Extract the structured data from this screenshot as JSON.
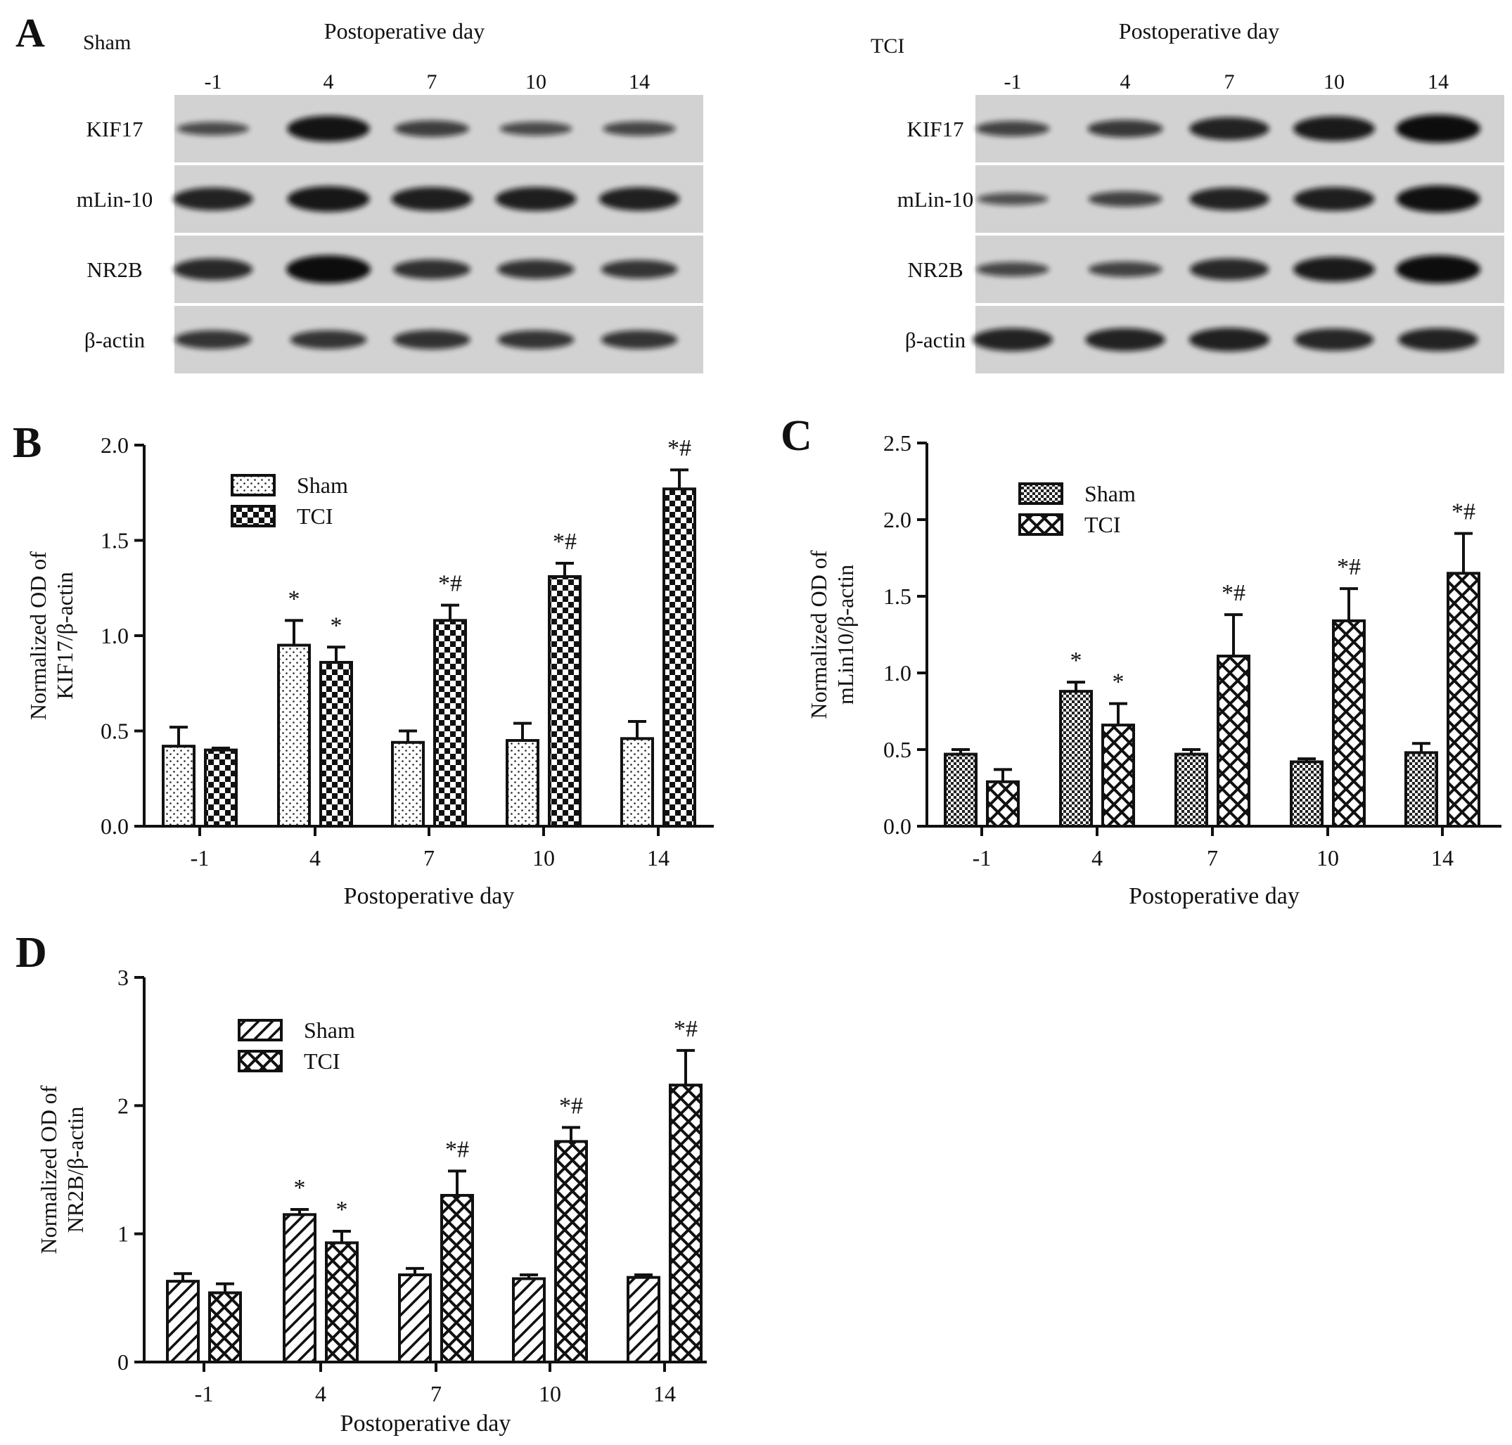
{
  "panel_a": {
    "letter": "A",
    "lanes": [
      "-1",
      "4",
      "7",
      "10",
      "14"
    ],
    "xlabel": "Postoperative day",
    "rows": [
      "KIF17",
      "mLin-10",
      "NR2B",
      "β-actin"
    ],
    "blots": [
      {
        "group": "Sham",
        "intensity": [
          [
            0.3,
            0.9,
            0.45,
            0.32,
            0.35
          ],
          [
            0.75,
            0.88,
            0.8,
            0.8,
            0.78
          ],
          [
            0.7,
            1.0,
            0.6,
            0.58,
            0.55
          ],
          [
            0.55,
            0.55,
            0.58,
            0.55,
            0.55
          ]
        ]
      },
      {
        "group": "TCI",
        "intensity": [
          [
            0.4,
            0.5,
            0.75,
            0.85,
            1.0
          ],
          [
            0.25,
            0.4,
            0.75,
            0.8,
            0.95
          ],
          [
            0.35,
            0.4,
            0.7,
            0.85,
            1.0
          ],
          [
            0.75,
            0.75,
            0.78,
            0.72,
            0.75
          ]
        ]
      }
    ]
  },
  "colors": {
    "ink": "#111111",
    "band": "#0e0e0e",
    "membrane": "#d2d2d2"
  },
  "chart_data": [
    {
      "panel": "B",
      "type": "bar",
      "categories": [
        "-1",
        "4",
        "7",
        "10",
        "14"
      ],
      "xlabel": "Postoperative day",
      "ylabel": [
        "Normalized OD of",
        "KIF17/β-actin"
      ],
      "ylim": [
        0,
        2.0
      ],
      "yticks": [
        "0.0",
        "0.5",
        "1.0",
        "1.5",
        "2.0"
      ],
      "legend_position": "top-left",
      "series": [
        {
          "name": "Sham",
          "pattern": "dots",
          "values": [
            0.42,
            0.95,
            0.44,
            0.45,
            0.46
          ],
          "errors": [
            0.1,
            0.13,
            0.06,
            0.09,
            0.09
          ]
        },
        {
          "name": "TCI",
          "pattern": "checker",
          "values": [
            0.4,
            0.86,
            1.08,
            1.31,
            1.77
          ],
          "errors": [
            0.01,
            0.08,
            0.08,
            0.07,
            0.1
          ]
        }
      ],
      "annotations": [
        {
          "category": 1,
          "series": 0,
          "text": "*"
        },
        {
          "category": 1,
          "series": 1,
          "text": "*"
        },
        {
          "category": 2,
          "series": 1,
          "text": "*#"
        },
        {
          "category": 3,
          "series": 1,
          "text": "*#"
        },
        {
          "category": 4,
          "series": 1,
          "text": "*#"
        }
      ]
    },
    {
      "panel": "C",
      "type": "bar",
      "categories": [
        "-1",
        "4",
        "7",
        "10",
        "14"
      ],
      "xlabel": "Postoperative day",
      "ylabel": [
        "Normalized OD of",
        "mLin10/β-actin"
      ],
      "ylim": [
        0,
        2.5
      ],
      "yticks": [
        "0.0",
        "0.5",
        "1.0",
        "1.5",
        "2.0",
        "2.5"
      ],
      "legend_position": "top-left",
      "series": [
        {
          "name": "Sham",
          "pattern": "fine-checker",
          "values": [
            0.47,
            0.88,
            0.47,
            0.42,
            0.48
          ],
          "errors": [
            0.03,
            0.06,
            0.03,
            0.02,
            0.06
          ]
        },
        {
          "name": "TCI",
          "pattern": "crosshatch",
          "values": [
            0.29,
            0.66,
            1.11,
            1.34,
            1.65
          ],
          "errors": [
            0.08,
            0.14,
            0.27,
            0.21,
            0.26
          ]
        }
      ],
      "annotations": [
        {
          "category": 1,
          "series": 0,
          "text": "*"
        },
        {
          "category": 1,
          "series": 1,
          "text": "*"
        },
        {
          "category": 2,
          "series": 1,
          "text": "*#"
        },
        {
          "category": 3,
          "series": 1,
          "text": "*#"
        },
        {
          "category": 4,
          "series": 1,
          "text": "*#"
        }
      ]
    },
    {
      "panel": "D",
      "type": "bar",
      "categories": [
        "-1",
        "4",
        "7",
        "10",
        "14"
      ],
      "xlabel": "Postoperative day",
      "ylabel": [
        "Normalized OD of",
        "NR2B/β-actin"
      ],
      "ylim": [
        0,
        3
      ],
      "yticks": [
        "0",
        "1",
        "2",
        "3"
      ],
      "legend_position": "top-left",
      "series": [
        {
          "name": "Sham",
          "pattern": "diagonal",
          "values": [
            0.63,
            1.15,
            0.68,
            0.65,
            0.66
          ],
          "errors": [
            0.06,
            0.04,
            0.05,
            0.03,
            0.02
          ]
        },
        {
          "name": "TCI",
          "pattern": "crosshatch",
          "values": [
            0.54,
            0.93,
            1.3,
            1.72,
            2.16
          ],
          "errors": [
            0.07,
            0.09,
            0.19,
            0.11,
            0.27
          ]
        }
      ],
      "annotations": [
        {
          "category": 1,
          "series": 0,
          "text": "*"
        },
        {
          "category": 1,
          "series": 1,
          "text": "*"
        },
        {
          "category": 2,
          "series": 1,
          "text": "*#"
        },
        {
          "category": 3,
          "series": 1,
          "text": "*#"
        },
        {
          "category": 4,
          "series": 1,
          "text": "*#"
        }
      ]
    }
  ]
}
